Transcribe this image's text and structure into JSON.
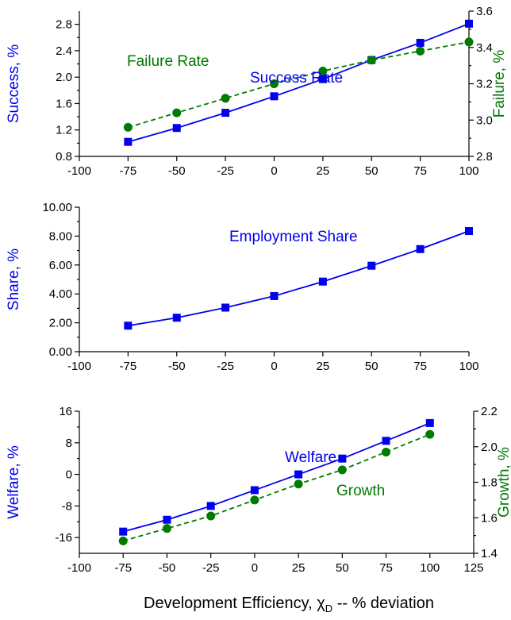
{
  "colors": {
    "blue": "#0000ee",
    "green": "#007a00"
  },
  "xlabel": {
    "main": "Development Efficiency, χ",
    "sub": "D",
    "rest": " -- % deviation"
  },
  "chart_data": [
    {
      "type": "line",
      "xlim": [
        -100,
        100
      ],
      "xticks": [
        -100,
        -75,
        -50,
        -25,
        0,
        25,
        50,
        75,
        100
      ],
      "ylabel": "Success, %",
      "ylim": [
        0.8,
        3.0
      ],
      "yticks": [
        "0.8",
        "1.2",
        "1.6",
        "2.0",
        "2.4",
        "2.8"
      ],
      "y2label": "Failure, %",
      "y2lim": [
        2.8,
        3.6
      ],
      "y2ticks": [
        "2.8",
        "3.0",
        "3.2",
        "3.4",
        "3.6"
      ],
      "series": [
        {
          "name": "Success Rate",
          "axis": "left",
          "color": "#0000ee",
          "marker": "square",
          "dash": false,
          "x": [
            -75,
            -50,
            -25,
            0,
            25,
            50,
            75,
            100
          ],
          "values": [
            1.02,
            1.23,
            1.46,
            1.71,
            1.97,
            2.26,
            2.52,
            2.81
          ]
        },
        {
          "name": "Failure Rate",
          "axis": "right",
          "color": "#007a00",
          "marker": "circle",
          "dash": true,
          "x": [
            -75,
            -50,
            -25,
            0,
            25,
            50,
            75,
            100
          ],
          "values": [
            2.96,
            3.04,
            3.12,
            3.2,
            3.27,
            3.33,
            3.38,
            3.43
          ]
        }
      ]
    },
    {
      "type": "line",
      "xlim": [
        -100,
        100
      ],
      "xticks": [
        -100,
        -75,
        -50,
        -25,
        0,
        25,
        50,
        75,
        100
      ],
      "ylabel": "Share, %",
      "ylim": [
        0,
        10
      ],
      "yticks": [
        "0.00",
        "2.00",
        "4.00",
        "6.00",
        "8.00",
        "10.00"
      ],
      "series": [
        {
          "name": "Employment Share",
          "axis": "left",
          "color": "#0000ee",
          "marker": "square",
          "dash": false,
          "x": [
            -75,
            -50,
            -25,
            0,
            25,
            50,
            75,
            100
          ],
          "values": [
            1.8,
            2.35,
            3.05,
            3.85,
            4.85,
            5.95,
            7.1,
            8.35
          ]
        }
      ]
    },
    {
      "type": "line",
      "xlim": [
        -100,
        125
      ],
      "xticks": [
        -100,
        -75,
        -50,
        -25,
        0,
        25,
        50,
        75,
        100,
        125
      ],
      "ylabel": "Welfare, %",
      "ylim": [
        -20,
        16
      ],
      "yticks": [
        "-16",
        "-8",
        "0",
        "8",
        "16"
      ],
      "y2label": "Growth, %",
      "y2lim": [
        1.4,
        2.2
      ],
      "y2ticks": [
        "1.4",
        "1.6",
        "1.8",
        "2.0",
        "2.2"
      ],
      "series": [
        {
          "name": "Welfare",
          "axis": "left",
          "color": "#0000ee",
          "marker": "square",
          "dash": false,
          "x": [
            -75,
            -50,
            -25,
            0,
            25,
            50,
            75,
            100
          ],
          "values": [
            -14.5,
            -11.5,
            -8,
            -4,
            0,
            4,
            8.5,
            13
          ]
        },
        {
          "name": "Growth",
          "axis": "right",
          "color": "#007a00",
          "marker": "circle",
          "dash": true,
          "x": [
            -75,
            -50,
            -25,
            0,
            25,
            50,
            75,
            100
          ],
          "values": [
            1.47,
            1.54,
            1.61,
            1.7,
            1.79,
            1.87,
            1.97,
            2.07
          ]
        }
      ]
    }
  ]
}
